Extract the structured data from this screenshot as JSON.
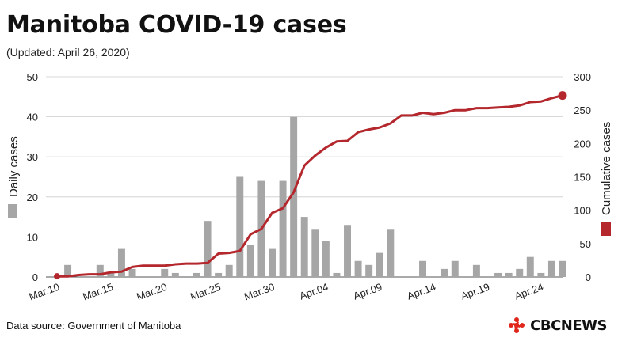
{
  "header": {
    "title": "Manitoba COVID-19 cases",
    "subtitle": "(Updated: April 26, 2020)"
  },
  "footer": {
    "source": "Data source: Government of Manitoba",
    "logo_text": "CBCNEWS"
  },
  "colors": {
    "bar": "#a6a6a6",
    "line": "#b3272d",
    "grid": "#cccccc",
    "text": "#111111",
    "logo": "#e1261c"
  },
  "chart_data": {
    "type": "bar+line",
    "x": [
      "Mar.10",
      "Mar.11",
      "Mar.12",
      "Mar.13",
      "Mar.14",
      "Mar.15",
      "Mar.16",
      "Mar.17",
      "Mar.18",
      "Mar.19",
      "Mar.20",
      "Mar.21",
      "Mar.22",
      "Mar.23",
      "Mar.24",
      "Mar.25",
      "Mar.26",
      "Mar.27",
      "Mar.28",
      "Mar.29",
      "Mar.30",
      "Mar.31",
      "Apr.01",
      "Apr.02",
      "Apr.03",
      "Apr.04",
      "Apr.05",
      "Apr.06",
      "Apr.07",
      "Apr.08",
      "Apr.09",
      "Apr.10",
      "Apr.11",
      "Apr.12",
      "Apr.13",
      "Apr.14",
      "Apr.15",
      "Apr.16",
      "Apr.17",
      "Apr.18",
      "Apr.19",
      "Apr.20",
      "Apr.21",
      "Apr.22",
      "Apr.23",
      "Apr.24",
      "Apr.25",
      "Apr.26"
    ],
    "xticks": [
      "Mar.10",
      "Mar.15",
      "Mar.20",
      "Mar.25",
      "Mar.30",
      "Apr.04",
      "Apr.09",
      "Apr.14",
      "Apr.19",
      "Apr.24"
    ],
    "series": [
      {
        "name": "Daily cases",
        "type": "bar",
        "axis": "left",
        "values": [
          0,
          3,
          0,
          0,
          3,
          1,
          7,
          2,
          0,
          0,
          2,
          1,
          0,
          1,
          14,
          1,
          3,
          25,
          8,
          24,
          7,
          24,
          40,
          15,
          12,
          9,
          1,
          13,
          4,
          3,
          6,
          12,
          0,
          0,
          4,
          0,
          2,
          4,
          0,
          3,
          0,
          1,
          1,
          2,
          5,
          1,
          4,
          4
        ]
      },
      {
        "name": "Cumulative cases",
        "type": "line",
        "axis": "right",
        "values": [
          1,
          1,
          3,
          4,
          4,
          7,
          8,
          15,
          17,
          17,
          17,
          19,
          20,
          20,
          21,
          35,
          36,
          39,
          64,
          72,
          96,
          103,
          127,
          167,
          182,
          194,
          203,
          204,
          217,
          221,
          224,
          230,
          242,
          242,
          246,
          244,
          246,
          250,
          250,
          253,
          253,
          254,
          255,
          257,
          262,
          263,
          268,
          272
        ]
      }
    ],
    "yleft": {
      "label": "Daily cases",
      "lim": [
        0,
        50
      ],
      "ticks": [
        0,
        10,
        20,
        30,
        40,
        50
      ]
    },
    "yright": {
      "label": "Cumulative cases",
      "lim": [
        0,
        300
      ],
      "ticks": [
        0,
        50,
        100,
        150,
        200,
        250,
        300
      ]
    },
    "grid": true
  }
}
